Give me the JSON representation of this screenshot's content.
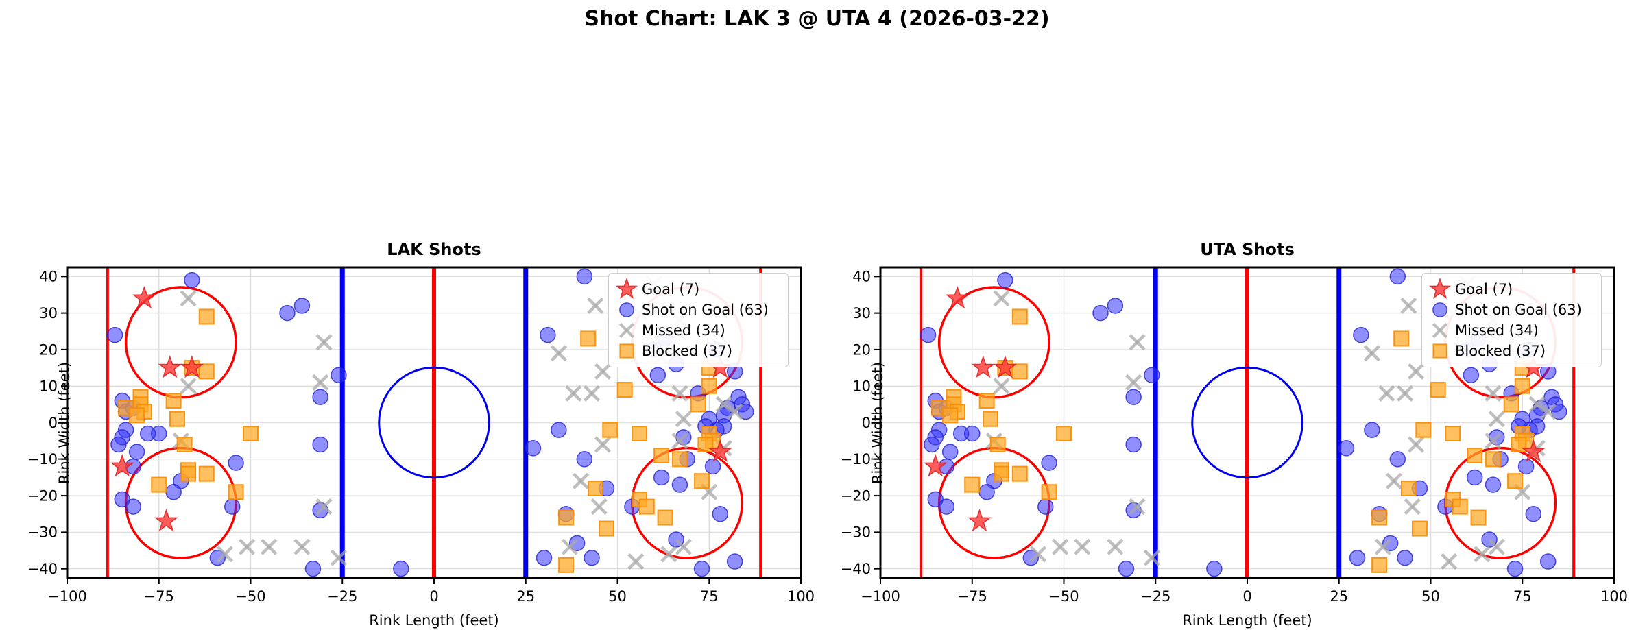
{
  "chart_data": {
    "type": "scatter",
    "title": "Shot Chart: LAK 3 @ UTA 4 (2026-03-22)",
    "panel_titles": [
      "LAK Shots",
      "UTA Shots"
    ],
    "xlabel": "Rink Length (feet)",
    "ylabel": "Rink Width (feet)",
    "xlim": [
      -100,
      100
    ],
    "ylim": [
      -42.5,
      42.5
    ],
    "xticks": [
      -100,
      -75,
      -50,
      -25,
      0,
      25,
      50,
      75,
      100
    ],
    "yticks": [
      -40,
      -30,
      -20,
      -10,
      0,
      10,
      20,
      30,
      40
    ],
    "grid": true,
    "legend_position": "upper right",
    "rink": {
      "goal_lines_x": [
        -89,
        89
      ],
      "blue_lines_x": [
        -25,
        25
      ],
      "center_line_x": 0,
      "center_circle": {
        "x": 0,
        "y": 0,
        "r": 15
      },
      "faceoff_circles": [
        [
          -69,
          22
        ],
        [
          69,
          22
        ],
        [
          -69,
          -22
        ],
        [
          69,
          -22
        ]
      ],
      "faceoff_radius": 15
    },
    "series": [
      {
        "name": "Goal (7)",
        "key": "goal",
        "marker": "star",
        "points": [
          [
            -79,
            34
          ],
          [
            -72,
            15
          ],
          [
            -66,
            15
          ],
          [
            -85,
            -12
          ],
          [
            -73,
            -27
          ],
          [
            78,
            15
          ],
          [
            78,
            -8
          ]
        ]
      },
      {
        "name": "Shot on Goal (63)",
        "key": "sog",
        "marker": "circle",
        "points": [
          [
            -66,
            39
          ],
          [
            -87,
            24
          ],
          [
            -85,
            6
          ],
          [
            -84,
            3
          ],
          [
            -82,
            4
          ],
          [
            -84,
            -2
          ],
          [
            -85,
            -4
          ],
          [
            -86,
            -6
          ],
          [
            -81,
            -8
          ],
          [
            -78,
            -3
          ],
          [
            -75,
            -3
          ],
          [
            -82,
            -12
          ],
          [
            -69,
            -16
          ],
          [
            -71,
            -19
          ],
          [
            -54,
            -11
          ],
          [
            -55,
            -23
          ],
          [
            -85,
            -21
          ],
          [
            -82,
            -23
          ],
          [
            -59,
            -37
          ],
          [
            -40,
            30
          ],
          [
            -36,
            32
          ],
          [
            -26,
            13
          ],
          [
            -31,
            7
          ],
          [
            -31,
            -6
          ],
          [
            -31,
            -24
          ],
          [
            -33,
            -40
          ],
          [
            -9,
            -40
          ],
          [
            41,
            40
          ],
          [
            31,
            24
          ],
          [
            34,
            -2
          ],
          [
            27,
            -7
          ],
          [
            41,
            -10
          ],
          [
            47,
            -18
          ],
          [
            36,
            -25
          ],
          [
            39,
            -33
          ],
          [
            30,
            -37
          ],
          [
            43,
            -37
          ],
          [
            54,
            -23
          ],
          [
            63,
            23
          ],
          [
            60,
            20
          ],
          [
            77,
            20
          ],
          [
            66,
            16
          ],
          [
            82,
            14
          ],
          [
            61,
            13
          ],
          [
            72,
            8
          ],
          [
            83,
            7
          ],
          [
            84,
            5
          ],
          [
            85,
            3
          ],
          [
            80,
            4
          ],
          [
            75,
            1
          ],
          [
            79,
            2
          ],
          [
            79,
            -1
          ],
          [
            77,
            -2
          ],
          [
            74,
            -1
          ],
          [
            68,
            -4
          ],
          [
            69,
            -10
          ],
          [
            76,
            -12
          ],
          [
            62,
            -15
          ],
          [
            67,
            -17
          ],
          [
            78,
            -25
          ],
          [
            66,
            -32
          ],
          [
            82,
            -38
          ],
          [
            73,
            -40
          ]
        ]
      },
      {
        "name": "Missed (34)",
        "key": "missed",
        "marker": "x",
        "points": [
          [
            -67,
            34
          ],
          [
            -67,
            10
          ],
          [
            -69,
            -5
          ],
          [
            -30,
            22
          ],
          [
            -31,
            11
          ],
          [
            -30,
            -23
          ],
          [
            -57,
            -36
          ],
          [
            -51,
            -34
          ],
          [
            -45,
            -34
          ],
          [
            -36,
            -34
          ],
          [
            -26,
            -37
          ],
          [
            44,
            32
          ],
          [
            34,
            19
          ],
          [
            46,
            14
          ],
          [
            38,
            8
          ],
          [
            43,
            8
          ],
          [
            46,
            -6
          ],
          [
            40,
            -16
          ],
          [
            45,
            -23
          ],
          [
            37,
            -34
          ],
          [
            60,
            38
          ],
          [
            56,
            30
          ],
          [
            67,
            28
          ],
          [
            62,
            18
          ],
          [
            67,
            8
          ],
          [
            79,
            5
          ],
          [
            82,
            3
          ],
          [
            68,
            1
          ],
          [
            67,
            -5
          ],
          [
            79,
            -7
          ],
          [
            75,
            -19
          ],
          [
            68,
            -34
          ],
          [
            64,
            -36
          ],
          [
            55,
            -38
          ]
        ]
      },
      {
        "name": "Blocked (37)",
        "key": "blocked",
        "marker": "square",
        "points": [
          [
            -62,
            29
          ],
          [
            -66,
            15
          ],
          [
            -62,
            14
          ],
          [
            -80,
            7
          ],
          [
            -80,
            5
          ],
          [
            -84,
            4
          ],
          [
            -79,
            3
          ],
          [
            -81,
            2
          ],
          [
            -71,
            6
          ],
          [
            -70,
            1
          ],
          [
            -68,
            -6
          ],
          [
            -50,
            -3
          ],
          [
            -67,
            -13
          ],
          [
            -67,
            -14
          ],
          [
            -62,
            -14
          ],
          [
            -75,
            -17
          ],
          [
            -54,
            -19
          ],
          [
            42,
            23
          ],
          [
            52,
            9
          ],
          [
            48,
            -2
          ],
          [
            44,
            -18
          ],
          [
            36,
            -26
          ],
          [
            47,
            -29
          ],
          [
            36,
            -39
          ],
          [
            75,
            15
          ],
          [
            75,
            10
          ],
          [
            72,
            5
          ],
          [
            56,
            -3
          ],
          [
            75,
            -3
          ],
          [
            76,
            -5
          ],
          [
            74,
            -6
          ],
          [
            62,
            -9
          ],
          [
            67,
            -10
          ],
          [
            73,
            -16
          ],
          [
            56,
            -21
          ],
          [
            58,
            -23
          ],
          [
            63,
            -26
          ]
        ]
      }
    ]
  },
  "colors": {
    "goal_fill": "#ff3333",
    "goal_edge": "#dd2222",
    "sog_fill": "#3333ff",
    "sog_edge": "#2222cc",
    "missed_stroke": "#a8a8a8",
    "blocked_fill": "#ffa726",
    "blocked_edge": "#fb8c00",
    "red_line": "#ff0000",
    "blue_line": "#0000ee",
    "grid": "#e0e0e0",
    "spine": "#000000"
  }
}
